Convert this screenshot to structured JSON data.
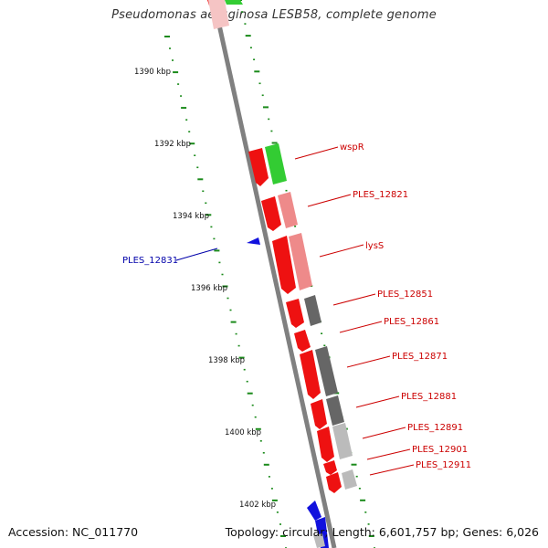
{
  "title": "Pseudomonas aeruginosa LESB58, complete genome",
  "footer": {
    "accession": "Accession: NC_011770",
    "topology": "Topology: circular; Length: 6,601,757 bp; Genes: 6,026"
  },
  "colors": {
    "backbone": "#808080",
    "ticks": "#1a8a1a",
    "label_red": "#cc0000",
    "label_blue": "#0000aa",
    "gene_forward": "#ee1111",
    "gene_reverse": "#1111dd",
    "gene_green": "#33cc33",
    "gene_pink": "#ee8a8a",
    "gene_darkgray": "#666666",
    "gene_lightgray": "#bbbbbb"
  },
  "scale_labels": [
    "1390 kbp",
    "1392 kbp",
    "1394 kbp",
    "1396 kbp",
    "1398 kbp",
    "1400 kbp",
    "1402 kbp"
  ],
  "gene_labels": [
    {
      "text": "wspR",
      "color": "red"
    },
    {
      "text": "PLES_12821",
      "color": "red"
    },
    {
      "text": "lysS",
      "color": "red"
    },
    {
      "text": "PLES_12831",
      "color": "blue"
    },
    {
      "text": "PLES_12851",
      "color": "red"
    },
    {
      "text": "PLES_12861",
      "color": "red"
    },
    {
      "text": "PLES_12871",
      "color": "red"
    },
    {
      "text": "PLES_12881",
      "color": "red"
    },
    {
      "text": "PLES_12891",
      "color": "red"
    },
    {
      "text": "PLES_12901",
      "color": "red"
    },
    {
      "text": "PLES_12911",
      "color": "red"
    }
  ]
}
